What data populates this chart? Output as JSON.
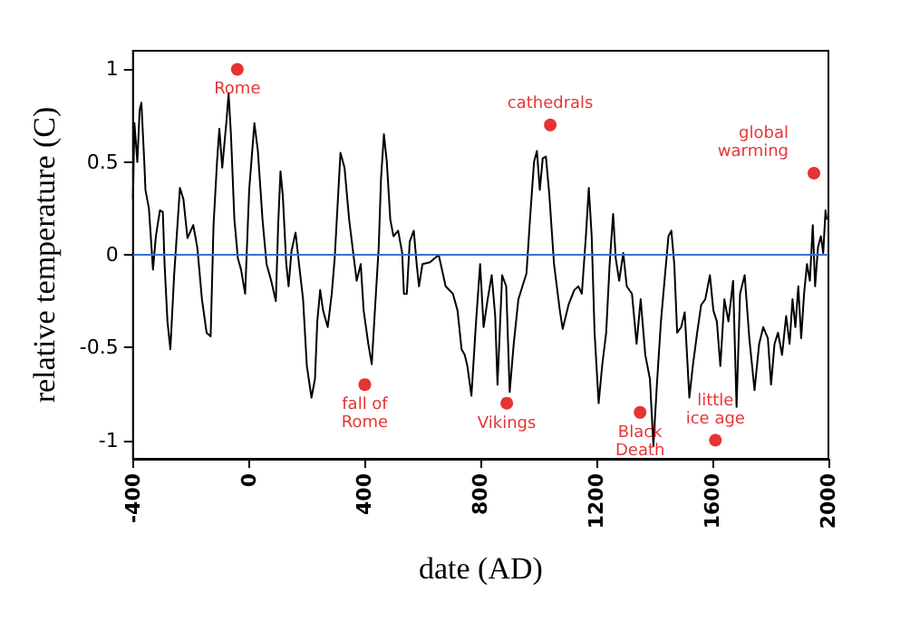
{
  "chart_data": {
    "type": "line",
    "xlabel": "date (AD)",
    "ylabel": "relative temperature (C)",
    "xlim": [
      -400,
      2000
    ],
    "xticks": [
      -400,
      0,
      400,
      800,
      1200,
      1600,
      2000
    ],
    "ylim": [
      -1.1,
      1.1
    ],
    "yticks": [
      -1,
      -0.5,
      0,
      0.5,
      1
    ],
    "grid": false,
    "marker": "none",
    "line_style": "solid",
    "ref_lines": [
      {
        "axis": "y",
        "value": 0,
        "color": "#3b6fd6"
      }
    ],
    "annotations": [
      {
        "text": "Rome",
        "x": -40,
        "y": 1.0
      },
      {
        "text": "fall of Rome",
        "x": 400,
        "y": -0.7
      },
      {
        "text": "Vikings",
        "x": 890,
        "y": -0.8
      },
      {
        "text": "cathedrals",
        "x": 1040,
        "y": 0.7
      },
      {
        "text": "Black Death",
        "x": 1350,
        "y": -0.85
      },
      {
        "text": "little ice age",
        "x": 1610,
        "y": -1.0
      },
      {
        "text": "global warming",
        "x": 1950,
        "y": 0.44
      }
    ],
    "series": [
      {
        "color": "#000000",
        "x": [
          -400,
          -395,
          -385,
          -377,
          -371,
          -361,
          -357,
          -345,
          -331,
          -321,
          -307,
          -297,
          -291,
          -281,
          -271,
          -258,
          -238,
          -226,
          -212,
          -192,
          -178,
          -162,
          -146,
          -132,
          -122,
          -110,
          -102,
          -92,
          -78,
          -70,
          -62,
          -50,
          -38,
          -27,
          -13,
          1,
          19,
          31,
          47,
          61,
          77,
          93,
          101,
          109,
          117,
          129,
          137,
          147,
          161,
          173,
          187,
          200,
          216,
          228,
          236,
          246,
          256,
          272,
          286,
          296,
          316,
          330,
          346,
          360,
          372,
          386,
          396,
          412,
          424,
          436,
          448,
          456,
          466,
          476,
          488,
          499,
          515,
          529,
          535,
          545,
          555,
          569,
          579,
          587,
          599,
          625,
          655,
          679,
          704,
          720,
          734,
          745,
          754,
          768,
          784,
          798,
          810,
          824,
          838,
          850,
          858,
          874,
          888,
          900,
          914,
          930,
          944,
          958,
          970,
          984,
          994,
          1004,
          1014,
          1025,
          1037,
          1053,
          1073,
          1083,
          1103,
          1123,
          1137,
          1149,
          1163,
          1173,
          1183,
          1193,
          1207,
          1219,
          1233,
          1245,
          1257,
          1266,
          1278,
          1292,
          1304,
          1322,
          1338,
          1352,
          1368,
          1384,
          1396,
          1408,
          1422,
          1436,
          1448,
          1458,
          1468,
          1478,
          1492,
          1504,
          1520,
          1532,
          1547,
          1561,
          1575,
          1591,
          1603,
          1615,
          1627,
          1641,
          1655,
          1671,
          1683,
          1695,
          1711,
          1727,
          1745,
          1761,
          1775,
          1791,
          1802,
          1814,
          1826,
          1840,
          1854,
          1866,
          1876,
          1886,
          1896,
          1906,
          1916,
          1926,
          1936,
          1946,
          1954,
          1964,
          1974,
          1982,
          1990,
          1994
        ],
        "values": [
          0.3,
          0.71,
          0.5,
          0.78,
          0.82,
          0.5,
          0.35,
          0.25,
          -0.08,
          0.1,
          0.24,
          0.23,
          -0.05,
          -0.36,
          -0.51,
          -0.11,
          0.36,
          0.3,
          0.09,
          0.16,
          0.04,
          -0.24,
          -0.42,
          -0.44,
          0.16,
          0.5,
          0.68,
          0.47,
          0.71,
          0.87,
          0.65,
          0.19,
          -0.02,
          -0.08,
          -0.21,
          0.35,
          0.71,
          0.56,
          0.19,
          -0.05,
          -0.14,
          -0.25,
          0.16,
          0.45,
          0.32,
          -0.05,
          -0.17,
          0.02,
          0.12,
          -0.05,
          -0.24,
          -0.6,
          -0.77,
          -0.67,
          -0.36,
          -0.19,
          -0.3,
          -0.39,
          -0.21,
          -0.02,
          0.55,
          0.47,
          0.19,
          0.01,
          -0.14,
          -0.05,
          -0.3,
          -0.48,
          -0.59,
          -0.27,
          0.04,
          0.41,
          0.65,
          0.5,
          0.19,
          0.1,
          0.13,
          0.01,
          -0.21,
          -0.21,
          0.07,
          0.13,
          -0.05,
          -0.17,
          -0.05,
          -0.04,
          0.0,
          -0.17,
          -0.21,
          -0.3,
          -0.51,
          -0.54,
          -0.6,
          -0.76,
          -0.36,
          -0.05,
          -0.39,
          -0.24,
          -0.11,
          -0.33,
          -0.7,
          -0.11,
          -0.17,
          -0.74,
          -0.48,
          -0.24,
          -0.17,
          -0.1,
          0.19,
          0.5,
          0.56,
          0.35,
          0.52,
          0.53,
          0.32,
          -0.05,
          -0.3,
          -0.4,
          -0.27,
          -0.19,
          -0.17,
          -0.21,
          0.1,
          0.36,
          0.1,
          -0.42,
          -0.8,
          -0.6,
          -0.42,
          -0.05,
          0.22,
          -0.02,
          -0.14,
          0.01,
          -0.17,
          -0.21,
          -0.48,
          -0.24,
          -0.54,
          -0.67,
          -1.03,
          -0.7,
          -0.36,
          -0.11,
          0.1,
          0.13,
          -0.05,
          -0.42,
          -0.39,
          -0.31,
          -0.77,
          -0.6,
          -0.42,
          -0.27,
          -0.24,
          -0.11,
          -0.3,
          -0.36,
          -0.6,
          -0.24,
          -0.36,
          -0.14,
          -0.82,
          -0.21,
          -0.11,
          -0.45,
          -0.73,
          -0.48,
          -0.39,
          -0.45,
          -0.7,
          -0.48,
          -0.42,
          -0.54,
          -0.33,
          -0.48,
          -0.24,
          -0.39,
          -0.17,
          -0.45,
          -0.21,
          -0.05,
          -0.14,
          0.16,
          -0.17,
          0.04,
          0.1,
          0.01,
          0.24,
          0.19
        ]
      }
    ]
  }
}
